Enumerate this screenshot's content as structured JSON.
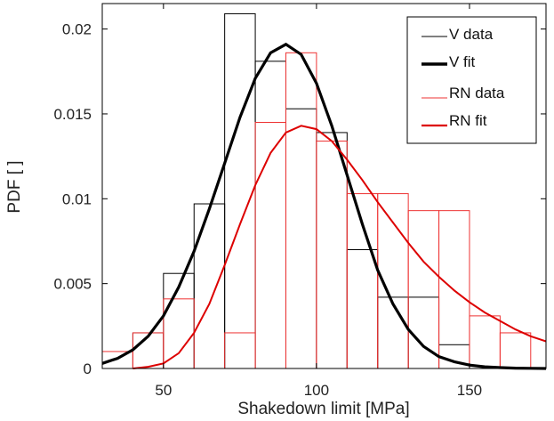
{
  "chart_data": {
    "type": "bar",
    "xlabel": "Shakedown limit [MPa]",
    "ylabel": "PDF [ ]",
    "xlim": [
      30,
      175
    ],
    "ylim": [
      0,
      0.0215
    ],
    "x_ticks": [
      50,
      100,
      150
    ],
    "x_tick_labels": [
      "50",
      "100",
      "150"
    ],
    "y_ticks": [
      0,
      0.005,
      0.01,
      0.015,
      0.02
    ],
    "y_tick_labels": [
      "0",
      "0.005",
      "0.01",
      "0.015",
      "0.02"
    ],
    "grid": false,
    "legend_position": "top-right",
    "series": [
      {
        "name": "V data",
        "kind": "histogram",
        "color": "#000000",
        "bins": [
          {
            "x0": 40,
            "x1": 50,
            "value": 0.0021
          },
          {
            "x0": 50,
            "x1": 60,
            "value": 0.0056
          },
          {
            "x0": 60,
            "x1": 70,
            "value": 0.0097
          },
          {
            "x0": 70,
            "x1": 80,
            "value": 0.0209
          },
          {
            "x0": 80,
            "x1": 90,
            "value": 0.0181
          },
          {
            "x0": 90,
            "x1": 100,
            "value": 0.0153
          },
          {
            "x0": 100,
            "x1": 110,
            "value": 0.0139
          },
          {
            "x0": 110,
            "x1": 120,
            "value": 0.007
          },
          {
            "x0": 120,
            "x1": 130,
            "value": 0.0042
          },
          {
            "x0": 130,
            "x1": 140,
            "value": 0.0042
          },
          {
            "x0": 140,
            "x1": 150,
            "value": 0.0014
          }
        ]
      },
      {
        "name": "V fit",
        "kind": "line",
        "color": "#000000",
        "x": [
          30,
          35,
          40,
          45,
          50,
          55,
          60,
          65,
          70,
          75,
          80,
          85,
          90,
          95,
          100,
          105,
          110,
          115,
          120,
          125,
          130,
          135,
          140,
          145,
          150,
          155,
          160,
          165,
          170,
          175
        ],
        "y": [
          0.0003,
          0.0006,
          0.0011,
          0.0019,
          0.0031,
          0.0048,
          0.0069,
          0.0094,
          0.0121,
          0.0148,
          0.0171,
          0.0186,
          0.0191,
          0.0185,
          0.0168,
          0.0143,
          0.0114,
          0.0085,
          0.0058,
          0.0038,
          0.0023,
          0.0013,
          0.0007,
          0.0004,
          0.0002,
          0.0001,
          5e-05,
          2e-05,
          1e-05,
          0.0
        ]
      },
      {
        "name": "RN data",
        "kind": "histogram",
        "color": "#ee3333",
        "bins": [
          {
            "x0": 30,
            "x1": 40,
            "value": 0.001
          },
          {
            "x0": 40,
            "x1": 50,
            "value": 0.0021
          },
          {
            "x0": 50,
            "x1": 60,
            "value": 0.0041
          },
          {
            "x0": 70,
            "x1": 80,
            "value": 0.0021
          },
          {
            "x0": 80,
            "x1": 90,
            "value": 0.0145
          },
          {
            "x0": 90,
            "x1": 100,
            "value": 0.0186
          },
          {
            "x0": 100,
            "x1": 110,
            "value": 0.0134
          },
          {
            "x0": 110,
            "x1": 120,
            "value": 0.0103
          },
          {
            "x0": 120,
            "x1": 130,
            "value": 0.0103
          },
          {
            "x0": 130,
            "x1": 140,
            "value": 0.0093
          },
          {
            "x0": 140,
            "x1": 150,
            "value": 0.0093
          },
          {
            "x0": 150,
            "x1": 160,
            "value": 0.0031
          },
          {
            "x0": 160,
            "x1": 170,
            "value": 0.0021
          }
        ]
      },
      {
        "name": "RN fit",
        "kind": "line",
        "color": "#dd0000",
        "x": [
          40,
          45,
          50,
          55,
          60,
          65,
          70,
          75,
          80,
          85,
          90,
          95,
          100,
          105,
          110,
          115,
          120,
          125,
          130,
          135,
          140,
          145,
          150,
          155,
          160,
          165,
          170,
          175
        ],
        "y": [
          0.0,
          0.0001,
          0.0003,
          0.0009,
          0.0021,
          0.0038,
          0.0061,
          0.0085,
          0.0108,
          0.0127,
          0.0139,
          0.0143,
          0.0141,
          0.0134,
          0.0123,
          0.0111,
          0.0098,
          0.0086,
          0.0074,
          0.0063,
          0.0054,
          0.0046,
          0.0039,
          0.0033,
          0.0028,
          0.0023,
          0.0019,
          0.0016
        ]
      }
    ]
  }
}
